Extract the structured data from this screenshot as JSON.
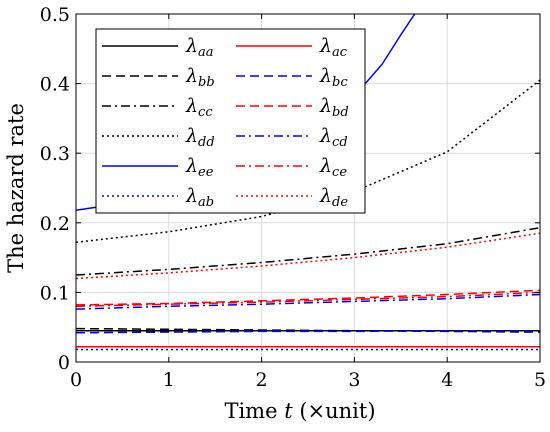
{
  "chart_data": {
    "type": "line",
    "xlabel_parts": [
      "Time ",
      "t",
      " (×unit)"
    ],
    "ylabel": "The hazard rate",
    "xlim": [
      0,
      5
    ],
    "ylim": [
      0,
      0.5
    ],
    "xticks": [
      0,
      1,
      2,
      3,
      4,
      5
    ],
    "yticks": [
      0,
      0.1,
      0.2,
      0.3,
      0.4,
      0.5
    ],
    "x_tick_labels": [
      "0",
      "1",
      "2",
      "3",
      "4",
      "5"
    ],
    "y_tick_labels": [
      "0",
      "0.1",
      "0.2",
      "0.3",
      "0.4",
      "0.5"
    ],
    "grid": true,
    "legend_placement": "top-left",
    "legend_columns": 2,
    "series": [
      {
        "name": "λ",
        "sub": "aa",
        "color": "#000000",
        "style": "solid",
        "x": [
          0,
          1,
          2,
          3,
          4,
          5
        ],
        "values": [
          0.045,
          0.045,
          0.045,
          0.045,
          0.045,
          0.045
        ]
      },
      {
        "name": "λ",
        "sub": "bb",
        "color": "#000000",
        "style": "dashed",
        "x": [
          0,
          1,
          2,
          3,
          4,
          5
        ],
        "values": [
          0.048,
          0.047,
          0.046,
          0.045,
          0.044,
          0.043
        ]
      },
      {
        "name": "λ",
        "sub": "cc",
        "color": "#000000",
        "style": "dashdot",
        "x": [
          0,
          1,
          2,
          3,
          4,
          5
        ],
        "values": [
          0.125,
          0.133,
          0.143,
          0.155,
          0.17,
          0.193
        ]
      },
      {
        "name": "λ",
        "sub": "dd",
        "color": "#000000",
        "style": "dotted",
        "x": [
          0,
          1,
          2,
          3,
          4,
          5
        ],
        "values": [
          0.172,
          0.187,
          0.209,
          0.245,
          0.302,
          0.405
        ]
      },
      {
        "name": "λ",
        "sub": "ee",
        "color": "#0000ff",
        "style": "solid",
        "x": [
          0,
          0.5,
          1,
          1.5,
          2,
          2.5,
          3,
          3.3,
          3.5,
          3.65
        ],
        "values": [
          0.218,
          0.228,
          0.243,
          0.263,
          0.29,
          0.327,
          0.382,
          0.428,
          0.47,
          0.5
        ]
      },
      {
        "name": "λ",
        "sub": "ab",
        "color": "#0000ff",
        "style": "dotted",
        "x": [
          0,
          1,
          2,
          3,
          4,
          5
        ],
        "values": [
          0.018,
          0.018,
          0.018,
          0.018,
          0.018,
          0.018
        ]
      },
      {
        "name": "λ",
        "sub": "ac",
        "color": "#ff0000",
        "style": "solid",
        "x": [
          0,
          1,
          2,
          3,
          4,
          5
        ],
        "values": [
          0.022,
          0.022,
          0.022,
          0.022,
          0.022,
          0.022
        ]
      },
      {
        "name": "λ",
        "sub": "bc",
        "color": "#0000ff",
        "style": "dashed",
        "x": [
          0,
          1,
          2,
          3,
          4,
          5
        ],
        "values": [
          0.042,
          0.043,
          0.044,
          0.044,
          0.045,
          0.045
        ]
      },
      {
        "name": "λ",
        "sub": "bd",
        "color": "#ff0000",
        "style": "dashed",
        "x": [
          0,
          1,
          2,
          3,
          4,
          5
        ],
        "values": [
          0.082,
          0.084,
          0.088,
          0.092,
          0.097,
          0.103
        ]
      },
      {
        "name": "λ",
        "sub": "cd",
        "color": "#0000ff",
        "style": "dashdot",
        "x": [
          0,
          1,
          2,
          3,
          4,
          5
        ],
        "values": [
          0.076,
          0.08,
          0.083,
          0.087,
          0.091,
          0.097
        ]
      },
      {
        "name": "λ",
        "sub": "ce",
        "color": "#ff0000",
        "style": "dashdot",
        "x": [
          0,
          1,
          2,
          3,
          4,
          5
        ],
        "values": [
          0.08,
          0.083,
          0.086,
          0.09,
          0.094,
          0.1
        ]
      },
      {
        "name": "λ",
        "sub": "de",
        "color": "#ff0000",
        "style": "dotted",
        "x": [
          0,
          1,
          2,
          3,
          4,
          5
        ],
        "values": [
          0.12,
          0.128,
          0.138,
          0.15,
          0.165,
          0.185
        ]
      }
    ]
  }
}
